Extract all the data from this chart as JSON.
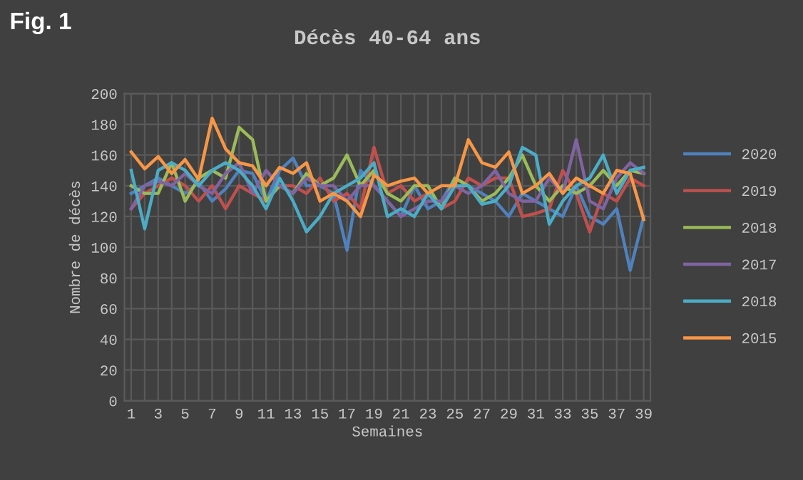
{
  "chart_data": {
    "type": "line",
    "title": "Décès 40-64 ans",
    "xlabel": "Semaines",
    "ylabel": "Nombre de décès",
    "annotations": [
      "Fig. 1"
    ],
    "categories": [
      "1",
      null,
      "3",
      null,
      "5",
      null,
      "7",
      null,
      "9",
      null,
      "11",
      null,
      "13",
      null,
      "15",
      null,
      "17",
      null,
      "19",
      null,
      "21",
      null,
      "23",
      null,
      "25",
      null,
      "27",
      null,
      "29",
      null,
      "31",
      null,
      "33",
      null,
      "35",
      null,
      "37",
      null,
      "39"
    ],
    "ylim": [
      0,
      200
    ],
    "yticks": [
      0,
      20,
      40,
      60,
      80,
      100,
      120,
      140,
      160,
      180,
      200
    ],
    "grid": true,
    "legend": "right",
    "marker": "none",
    "line_style": "solid",
    "series": [
      {
        "name": "2020",
        "color": "#4f81bd",
        "values": [
          135,
          140,
          145,
          140,
          135,
          142,
          130,
          138,
          150,
          148,
          130,
          150,
          158,
          140,
          140,
          135,
          98,
          150,
          140,
          130,
          120,
          140,
          125,
          130,
          145,
          140,
          135,
          130,
          120,
          135,
          130,
          125,
          120,
          140,
          120,
          115,
          125,
          85,
          120
        ]
      },
      {
        "name": "2019",
        "color": "#c0504d",
        "values": [
          125,
          135,
          140,
          145,
          140,
          130,
          140,
          125,
          140,
          135,
          130,
          140,
          140,
          135,
          145,
          130,
          135,
          125,
          165,
          135,
          140,
          130,
          135,
          125,
          130,
          145,
          140,
          145,
          145,
          120,
          122,
          125,
          150,
          135,
          110,
          135,
          130,
          145,
          140
        ]
      },
      {
        "name": "2018",
        "color": "#9bbb59",
        "values": [
          140,
          135,
          135,
          155,
          130,
          145,
          150,
          145,
          178,
          170,
          130,
          140,
          135,
          148,
          140,
          145,
          160,
          140,
          150,
          135,
          130,
          140,
          140,
          125,
          145,
          140,
          130,
          135,
          145,
          160,
          140,
          130,
          140,
          135,
          140,
          150,
          140,
          150,
          148
        ]
      },
      {
        "name": "2017",
        "color": "#8064a2",
        "values": [
          125,
          140,
          143,
          140,
          148,
          140,
          135,
          148,
          155,
          135,
          150,
          140,
          135,
          145,
          140,
          140,
          130,
          140,
          140,
          130,
          120,
          125,
          130,
          130,
          140,
          135,
          140,
          150,
          135,
          130,
          130,
          145,
          135,
          170,
          130,
          125,
          145,
          155,
          148
        ]
      },
      {
        "name": "2018",
        "color": "#4bacc6",
        "values": [
          150,
          112,
          150,
          155,
          150,
          140,
          150,
          155,
          150,
          140,
          125,
          145,
          130,
          110,
          120,
          135,
          140,
          145,
          155,
          120,
          125,
          120,
          135,
          125,
          140,
          140,
          128,
          130,
          140,
          165,
          160,
          115,
          130,
          140,
          145,
          160,
          135,
          150,
          152
        ]
      },
      {
        "name": "2015",
        "color": "#f79646",
        "values": [
          162,
          151,
          159,
          148,
          157,
          144,
          184,
          164,
          155,
          153,
          140,
          152,
          148,
          155,
          130,
          135,
          130,
          120,
          147,
          140,
          143,
          145,
          135,
          140,
          140,
          170,
          155,
          152,
          162,
          135,
          140,
          148,
          135,
          145,
          140,
          135,
          150,
          148,
          118
        ]
      }
    ]
  }
}
